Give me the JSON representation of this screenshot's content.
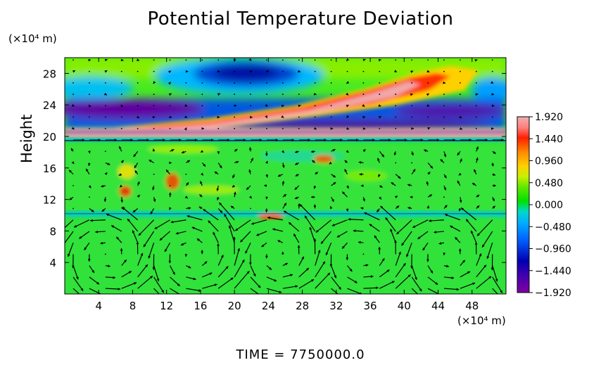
{
  "title": "Potential Temperature Deviation",
  "y_unit": "(×10⁴ m)",
  "x_unit": "(×10⁴ m)",
  "ylabel": "Height",
  "time_text": "TIME  =  7750000.0",
  "chart_data": {
    "type": "heatmap",
    "title": "Potential Temperature Deviation",
    "xlabel": "",
    "ylabel": "Height",
    "x_units": "×10⁴ m",
    "y_units": "×10⁴ m",
    "xlim": [
      0,
      52
    ],
    "ylim": [
      0,
      30
    ],
    "xticks": [
      4,
      8,
      12,
      16,
      20,
      24,
      28,
      32,
      36,
      40,
      44,
      48
    ],
    "yticks": [
      4,
      8,
      12,
      16,
      20,
      24,
      28
    ],
    "colorbar": {
      "min": -1.92,
      "max": 1.92,
      "tick_labels": [
        "1.920",
        "1.440",
        "0.960",
        "0.480",
        "0.000",
        "−0.480",
        "−0.960",
        "−1.440",
        "−1.920"
      ],
      "colors": [
        "#f0a8a8",
        "#ff2000",
        "#ff8800",
        "#ffd000",
        "#00e000",
        "#00d8c8",
        "#0090ff",
        "#0000b0",
        "#8000a0"
      ]
    },
    "overlay": "velocity vectors",
    "features": [
      {
        "name": "warm tilted band",
        "value": 1.92,
        "x_range": [
          8,
          42
        ],
        "y_range": [
          20,
          27
        ]
      },
      {
        "name": "upper cold cell",
        "value": -1.6,
        "x": 22,
        "y": 27.5
      },
      {
        "name": "cold layer",
        "value": -1.92,
        "y_range": [
          21,
          24
        ]
      },
      {
        "name": "interface line",
        "y": 10
      }
    ]
  }
}
